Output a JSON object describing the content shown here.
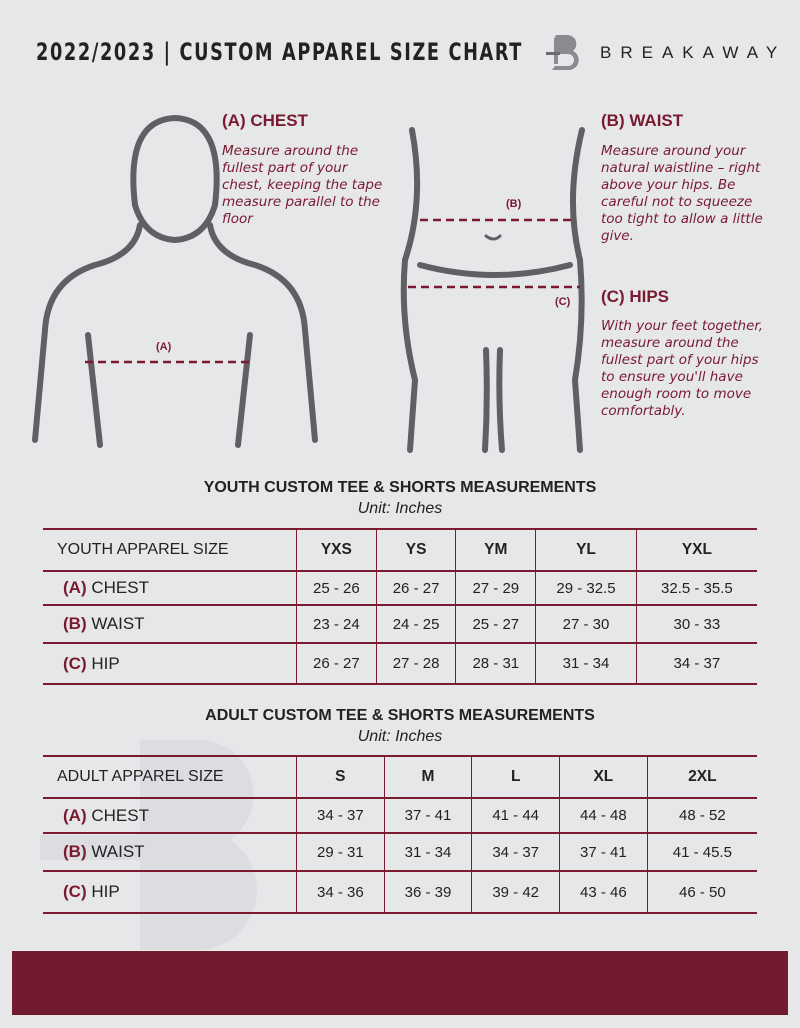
{
  "header": {
    "title": "2022/2023 | CUSTOM APPAREL SIZE CHART",
    "brand": "BREAKAWAY"
  },
  "guide": {
    "chest": {
      "heading": "(A) CHEST",
      "text": "Measure around the fullest part of your chest, keeping the tape measure parallel to the floor",
      "marker": "(A)"
    },
    "waist": {
      "heading": "(B) WAIST",
      "text": "Measure around your natural waistline – right above your hips. Be careful not to squeeze too tight to allow a little give.",
      "marker": "(B)"
    },
    "hips": {
      "heading": "(C) HIPS",
      "text": "With your feet together, measure around the fullest part of your hips to ensure you'll have enough room to move comfortably.",
      "marker": "(C)"
    }
  },
  "youth": {
    "title": "YOUTH CUSTOM TEE & SHORTS MEASUREMENTS",
    "unit": "Unit: Inches",
    "header": [
      "YOUTH APPAREL SIZE",
      "YXS",
      "YS",
      "YM",
      "YL",
      "YXL"
    ],
    "rows": [
      {
        "code": "(A)",
        "label": "CHEST",
        "values": [
          "25 - 26",
          "26 - 27",
          "27 - 29",
          "29 - 32.5",
          "32.5 - 35.5"
        ]
      },
      {
        "code": "(B)",
        "label": "WAIST",
        "values": [
          "23 - 24",
          "24 - 25",
          "25 - 27",
          "27 - 30",
          "30 - 33"
        ]
      },
      {
        "code": "(C)",
        "label": "HIP",
        "values": [
          "26 - 27",
          "27 - 28",
          "28 - 31",
          "31 - 34",
          "34 - 37"
        ]
      }
    ]
  },
  "adult": {
    "title": "ADULT CUSTOM TEE & SHORTS MEASUREMENTS",
    "unit": "Unit: Inches",
    "header": [
      "ADULT APPAREL SIZE",
      "S",
      "M",
      "L",
      "XL",
      "2XL"
    ],
    "rows": [
      {
        "code": "(A)",
        "label": "CHEST",
        "values": [
          "34 - 37",
          "37 - 41",
          "41 - 44",
          "44 - 48",
          "48 - 52"
        ]
      },
      {
        "code": "(B)",
        "label": "WAIST",
        "values": [
          "29 - 31",
          "31 - 34",
          "34 - 37",
          "37 - 41",
          "41 - 45.5"
        ]
      },
      {
        "code": "(C)",
        "label": "HIP",
        "values": [
          "34 - 36",
          "36 - 39",
          "39 - 42",
          "43 - 46",
          "46 - 50"
        ]
      }
    ]
  },
  "colors": {
    "accent": "#7a1a30",
    "background": "#e6e7e9",
    "footer": "#721a2e"
  }
}
